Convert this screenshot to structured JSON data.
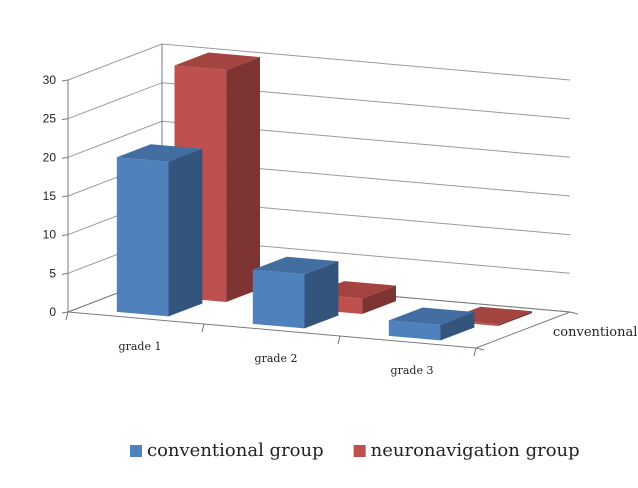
{
  "chart_data": {
    "type": "bar",
    "categories": [
      "grade 1",
      "grade 2",
      "grade 3"
    ],
    "series": [
      {
        "name": "conventional group",
        "values": [
          20,
          7,
          2
        ],
        "color": "#4F81BD"
      },
      {
        "name": "neuronavigation group",
        "values": [
          30,
          2,
          0
        ],
        "color": "#C0504D"
      }
    ],
    "depth_label": "conventional group",
    "ylim": [
      0,
      30
    ],
    "yticks": [
      "0",
      "5",
      "10",
      "15",
      "20",
      "25",
      "30"
    ],
    "grid": true,
    "legend": "bottom",
    "projection": "3d"
  }
}
